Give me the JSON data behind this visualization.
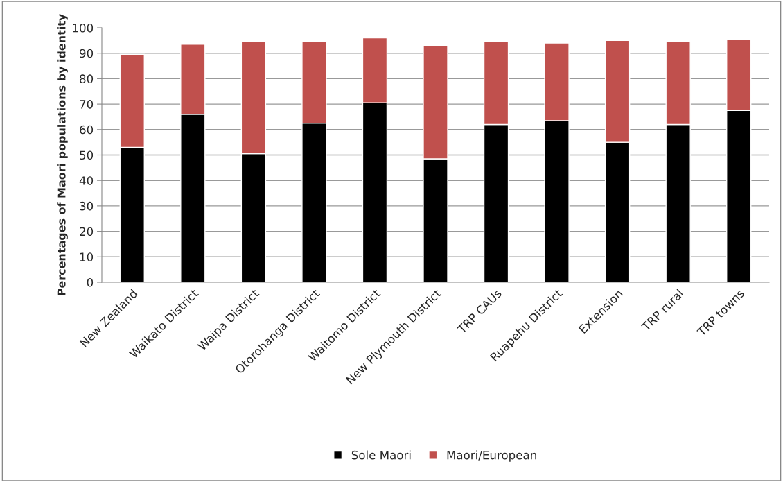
{
  "chart_data": {
    "type": "bar",
    "stacked": true,
    "ylabel": "Percentages of Maori populations by identity",
    "categories": [
      "New Zealand",
      "Waikato District",
      "Waipa District",
      "Otorohanga District",
      "Waitomo District",
      "New Plymouth District",
      "TRP CAUs",
      "Ruapehu District",
      "Extension",
      "TRP rural",
      "TRP towns"
    ],
    "series": [
      {
        "name": "Sole Maori",
        "color": "#000000",
        "values": [
          53,
          66,
          50.5,
          62.5,
          70.5,
          48.5,
          62,
          63.5,
          55,
          62,
          67.5
        ]
      },
      {
        "name": "Maori/European",
        "color": "#c0504d",
        "values": [
          36.5,
          27.5,
          44,
          32,
          25.5,
          44.5,
          32.5,
          30.5,
          40,
          32.5,
          28
        ]
      }
    ],
    "ylim": [
      0,
      100
    ],
    "yticks": [
      0,
      10,
      20,
      30,
      40,
      50,
      60,
      70,
      80,
      90,
      100
    ],
    "grid": "y",
    "legend": "bottom"
  }
}
